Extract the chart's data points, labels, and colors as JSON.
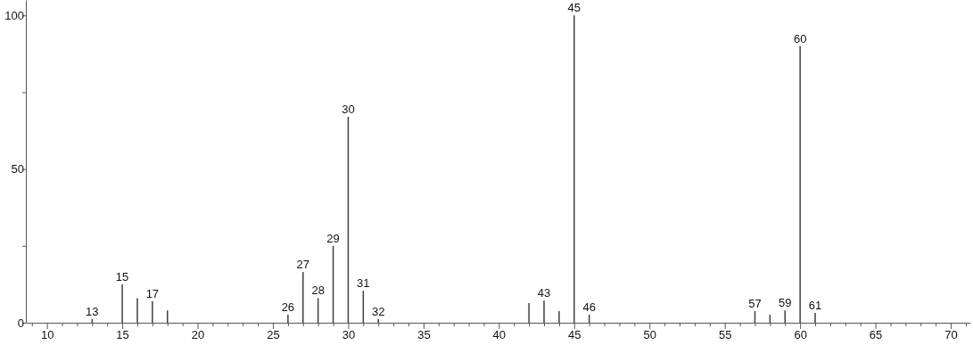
{
  "chart_data": {
    "type": "bar",
    "color": "#404040",
    "x": [
      13,
      15,
      16,
      17,
      18,
      26,
      27,
      28,
      29,
      30,
      31,
      32,
      42,
      43,
      44,
      45,
      46,
      57,
      58,
      59,
      60,
      61
    ],
    "values": [
      1.2,
      12.5,
      8,
      7,
      4,
      2.6,
      16.5,
      8,
      25,
      67,
      10.4,
      1.2,
      6.4,
      7.2,
      3.8,
      100,
      2.6,
      3.8,
      2.6,
      4,
      90,
      3.2
    ],
    "xlim": [
      8.6,
      71.3
    ],
    "ylim": [
      0,
      105
    ],
    "xticks": [
      {
        "value": 9,
        "label": null
      },
      10,
      {
        "value": 11,
        "label": null
      },
      {
        "value": 12,
        "label": null
      },
      {
        "value": 13,
        "label": null
      },
      {
        "value": 14,
        "label": null
      },
      15,
      {
        "value": 16,
        "label": null
      },
      {
        "value": 17,
        "label": null
      },
      {
        "value": 18,
        "label": null
      },
      {
        "value": 19,
        "label": null
      },
      20,
      {
        "value": 21,
        "label": null
      },
      {
        "value": 22,
        "label": null
      },
      {
        "value": 23,
        "label": null
      },
      {
        "value": 24,
        "label": null
      },
      25,
      {
        "value": 26,
        "label": null
      },
      {
        "value": 27,
        "label": null
      },
      {
        "value": 28,
        "label": null
      },
      {
        "value": 29,
        "label": null
      },
      30,
      {
        "value": 31,
        "label": null
      },
      {
        "value": 32,
        "label": null
      },
      {
        "value": 33,
        "label": null
      },
      {
        "value": 34,
        "label": null
      },
      35,
      {
        "value": 36,
        "label": null
      },
      {
        "value": 37,
        "label": null
      },
      {
        "value": 38,
        "label": null
      },
      {
        "value": 39,
        "label": null
      },
      40,
      {
        "value": 41,
        "label": null
      },
      {
        "value": 42,
        "label": null
      },
      {
        "value": 43,
        "label": null
      },
      {
        "value": 44,
        "label": null
      },
      45,
      {
        "value": 46,
        "label": null
      },
      {
        "value": 47,
        "label": null
      },
      {
        "value": 48,
        "label": null
      },
      {
        "value": 49,
        "label": null
      },
      50,
      {
        "value": 51,
        "label": null
      },
      {
        "value": 52,
        "label": null
      },
      {
        "value": 53,
        "label": null
      },
      {
        "value": 54,
        "label": null
      },
      55,
      {
        "value": 56,
        "label": null
      },
      {
        "value": 57,
        "label": null
      },
      {
        "value": 58,
        "label": null
      },
      {
        "value": 59,
        "label": null
      },
      60,
      {
        "value": 61,
        "label": null
      },
      {
        "value": 62,
        "label": null
      },
      {
        "value": 63,
        "label": null
      },
      {
        "value": 64,
        "label": null
      },
      65,
      {
        "value": 66,
        "label": null
      },
      {
        "value": 67,
        "label": null
      },
      {
        "value": 68,
        "label": null
      },
      {
        "value": 69,
        "label": null
      },
      70,
      {
        "value": 71,
        "label": null
      }
    ],
    "yticks": [
      0,
      {
        "value": 25,
        "label": null
      },
      50,
      {
        "value": 75,
        "label": null
      },
      100
    ],
    "annotations": [
      {
        "text": "13",
        "x": 13,
        "y": 1.2
      },
      {
        "text": "15",
        "x": 15,
        "y": 12.5
      },
      {
        "text": "17",
        "x": 17,
        "y": 7
      },
      {
        "text": "26",
        "x": 26,
        "y": 2.6
      },
      {
        "text": "27",
        "x": 27,
        "y": 16.5
      },
      {
        "text": "28",
        "x": 28,
        "y": 8
      },
      {
        "text": "29",
        "x": 29,
        "y": 25
      },
      {
        "text": "30",
        "x": 30,
        "y": 67
      },
      {
        "text": "31",
        "x": 31,
        "y": 10.4
      },
      {
        "text": "32",
        "x": 32,
        "y": 1.2
      },
      {
        "text": "43",
        "x": 43,
        "y": 7.2
      },
      {
        "text": "45",
        "x": 45,
        "y": 100
      },
      {
        "text": "46",
        "x": 46,
        "y": 2.6
      },
      {
        "text": "57",
        "x": 57,
        "y": 3.8
      },
      {
        "text": "59",
        "x": 59,
        "y": 4
      },
      {
        "text": "60",
        "x": 60,
        "y": 90
      },
      {
        "text": "61",
        "x": 61,
        "y": 3.2
      }
    ]
  }
}
